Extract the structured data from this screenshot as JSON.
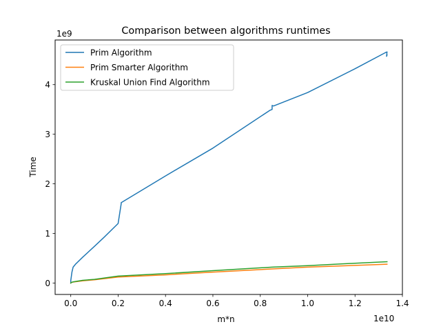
{
  "chart_data": {
    "type": "line",
    "title": "Comparison between algorithms runtimes",
    "xlabel": "m*n",
    "ylabel": "Time",
    "x_offset_label": "1e10",
    "y_offset_label": "1e9",
    "xlim": [
      -0.066,
      1.4
    ],
    "ylim": [
      -0.23,
      4.9
    ],
    "x_scale": 10000000000.0,
    "y_scale": 1000000000.0,
    "x_ticks": [
      0.0,
      0.2,
      0.4,
      0.6,
      0.8,
      1.0,
      1.2,
      1.4
    ],
    "x_tick_labels": [
      "0.0",
      "0.2",
      "0.4",
      "0.6",
      "0.8",
      "1.0",
      "1.2",
      "1.4"
    ],
    "y_ticks": [
      0,
      1,
      2,
      3,
      4
    ],
    "y_tick_labels": [
      "0",
      "1",
      "2",
      "3",
      "4"
    ],
    "grid": false,
    "legend_position": "top-left",
    "series": [
      {
        "name": "Prim Algorithm",
        "color": "#1f77b4",
        "x": [
          0.0,
          0.0,
          0.002,
          0.005,
          0.01,
          0.02,
          0.05,
          0.1,
          0.14,
          0.2,
          0.213,
          0.213,
          0.4,
          0.6,
          0.84,
          0.85,
          0.85,
          0.856,
          1.0,
          1.2,
          1.33,
          1.335,
          1.333,
          1.335
        ],
        "y": [
          0.0,
          0.05,
          0.12,
          0.22,
          0.32,
          0.38,
          0.52,
          0.74,
          0.92,
          1.2,
          1.6,
          1.62,
          2.16,
          2.72,
          3.48,
          3.5,
          3.58,
          3.57,
          3.84,
          4.32,
          4.65,
          4.66,
          4.57,
          4.6
        ]
      },
      {
        "name": "Prim Smarter Algorithm",
        "color": "#ff7f0e",
        "x": [
          0.0,
          0.002,
          0.01,
          0.05,
          0.1,
          0.2,
          0.4,
          0.6,
          0.85,
          1.0,
          1.2,
          1.335
        ],
        "y": [
          0.0,
          0.01,
          0.02,
          0.045,
          0.065,
          0.12,
          0.165,
          0.22,
          0.285,
          0.32,
          0.355,
          0.38
        ]
      },
      {
        "name": "Kruskal Union Find Algorithm",
        "color": "#2ca02c",
        "x": [
          0.0,
          0.002,
          0.01,
          0.05,
          0.1,
          0.2,
          0.4,
          0.6,
          0.85,
          1.0,
          1.2,
          1.335
        ],
        "y": [
          0.0,
          0.01,
          0.025,
          0.055,
          0.075,
          0.14,
          0.19,
          0.25,
          0.32,
          0.35,
          0.4,
          0.43
        ]
      }
    ]
  }
}
